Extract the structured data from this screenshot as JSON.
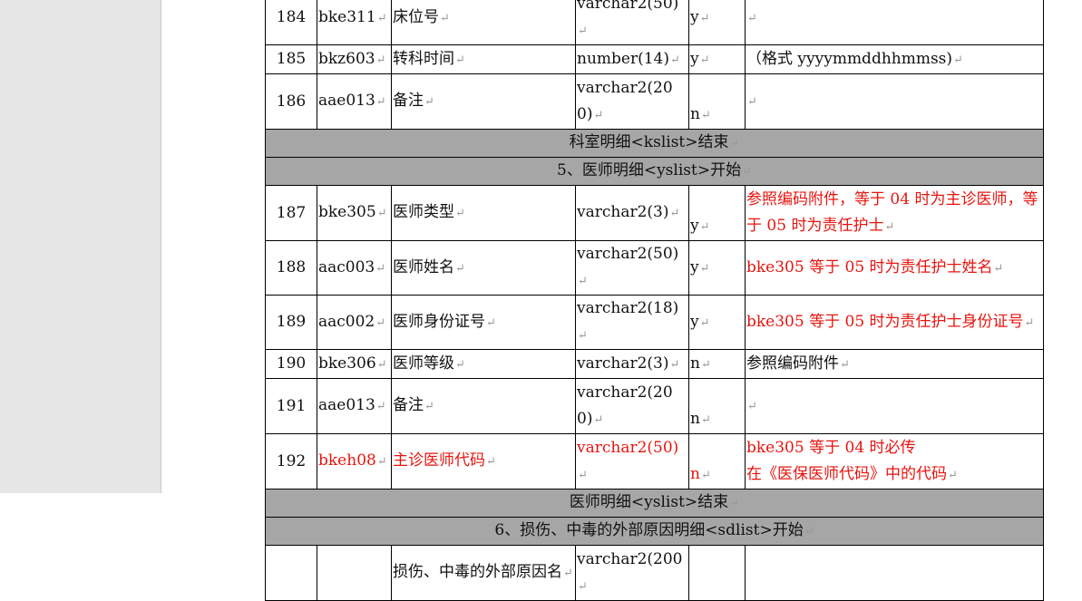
{
  "rows": [
    {
      "type": "row",
      "no": "184",
      "code": "bke311",
      "name": "床位号",
      "dtype": "varchar2(50)",
      "req": "y",
      "note": ""
    },
    {
      "type": "row",
      "no": "185",
      "code": "bkz603",
      "name": "转科时间",
      "dtype": "number(14)",
      "req": "y",
      "note": "（格式 yyyymmddhhmmss)"
    },
    {
      "type": "row",
      "tall": true,
      "no": "186",
      "code": "aae013",
      "name": "备注",
      "dtype": "varchar2(200)",
      "req": "n",
      "note": ""
    },
    {
      "type": "section",
      "text": "科室明细<kslist>结束"
    },
    {
      "type": "section",
      "text": "5、医师明细<yslist>开始"
    },
    {
      "type": "row",
      "tall": true,
      "no": "187",
      "code": "bke305",
      "name": "医师类型",
      "dtype": "varchar2(3)",
      "req": "y",
      "note": "参照编码附件，等于 04 时为主诊医师，等于 05 时为责任护士",
      "note_red": true
    },
    {
      "type": "row",
      "no": "188",
      "code": "aac003",
      "name": "医师姓名",
      "dtype": "varchar2(50)",
      "req": "y",
      "note": "bke305 等于 05 时为责任护士姓名",
      "note_red": true
    },
    {
      "type": "row",
      "no": "189",
      "code": "aac002",
      "name": "医师身份证号",
      "dtype": "varchar2(18)",
      "req": "y",
      "note": "bke305 等于 05 时为责任护士身份证号",
      "note_red": true
    },
    {
      "type": "row",
      "no": "190",
      "code": "bke306",
      "name": "医师等级",
      "dtype": "varchar2(3)",
      "req": "n",
      "note": "参照编码附件"
    },
    {
      "type": "row",
      "tall": true,
      "no": "191",
      "code": "aae013",
      "name": "备注",
      "dtype": "varchar2(200)",
      "req": "n",
      "note": ""
    },
    {
      "type": "row",
      "tall": true,
      "red": true,
      "no": "192",
      "code": "bkeh08",
      "name": "主诊医师代码",
      "dtype": "varchar2(50)",
      "req": "n",
      "note": "bke305 等于 04 时必传\n在《医保医师代码》中的代码",
      "note_red": true
    },
    {
      "type": "section",
      "text": "医师明细<yslist>结束"
    },
    {
      "type": "section",
      "text": "6、损伤、中毒的外部原因明细<sdlist>开始"
    },
    {
      "type": "row",
      "tall": true,
      "no": "",
      "code": "",
      "name": "损伤、中毒的外部原因名",
      "dtype": "varchar2(200",
      "req": "",
      "note": ""
    }
  ],
  "colors": {
    "section_bg": "#a6a6a6",
    "red_text": "#e8140f"
  }
}
